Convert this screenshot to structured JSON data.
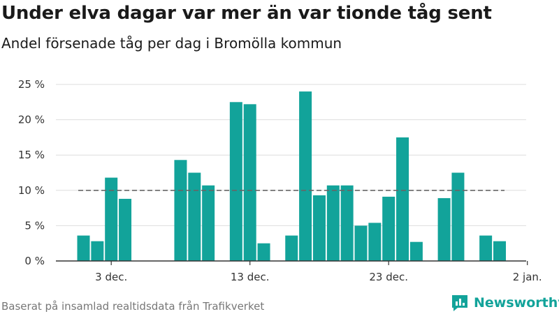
{
  "title": "Under elva dagar var mer än var tionde tåg sent",
  "subtitle": "Andel försenade tåg per dag i Bromölla kommun",
  "source": "Baserat på insamlad realtidsdata från Trafikverket",
  "brand": {
    "name": "Newsworthy",
    "icon": "bar-chart-logo-icon",
    "color": "#12a39a"
  },
  "chart_data": {
    "type": "bar",
    "title": "Under elva dagar var mer än var tionde tåg sent",
    "subtitle": "Andel försenade tåg per dag i Bromölla kommun",
    "x": [
      "2019-12-01",
      "2019-12-02",
      "2019-12-03",
      "2019-12-04",
      "2019-12-05",
      "2019-12-06",
      "2019-12-07",
      "2019-12-08",
      "2019-12-09",
      "2019-12-10",
      "2019-12-11",
      "2019-12-12",
      "2019-12-13",
      "2019-12-14",
      "2019-12-15",
      "2019-12-16",
      "2019-12-17",
      "2019-12-18",
      "2019-12-19",
      "2019-12-20",
      "2019-12-21",
      "2019-12-22",
      "2019-12-23",
      "2019-12-24",
      "2019-12-25",
      "2019-12-26",
      "2019-12-27",
      "2019-12-28",
      "2019-12-29",
      "2019-12-30",
      "2019-12-31"
    ],
    "values": [
      3.6,
      2.8,
      11.8,
      8.8,
      null,
      null,
      null,
      14.3,
      12.5,
      10.7,
      null,
      22.5,
      22.2,
      2.5,
      null,
      3.6,
      24.0,
      9.3,
      10.7,
      10.7,
      5.0,
      5.4,
      9.1,
      17.5,
      2.7,
      null,
      8.9,
      12.5,
      null,
      3.6,
      2.8
    ],
    "xticks": [
      {
        "date": "2019-12-03",
        "label": "3 dec."
      },
      {
        "date": "2019-12-13",
        "label": "13 dec."
      },
      {
        "date": "2019-12-23",
        "label": "23 dec."
      },
      {
        "date": "2020-01-02",
        "label": "2 jan."
      }
    ],
    "yticks": [
      {
        "value": 0,
        "label": "0 %"
      },
      {
        "value": 5,
        "label": "5 %"
      },
      {
        "value": 10,
        "label": "10 %"
      },
      {
        "value": 15,
        "label": "15 %"
      },
      {
        "value": 20,
        "label": "20 %"
      },
      {
        "value": 25,
        "label": "25 %"
      }
    ],
    "ylim": [
      0,
      25
    ],
    "reference_line": {
      "value": 10,
      "style": "dashed"
    },
    "bar_color": "#12a39a",
    "grid": true,
    "legend": false
  }
}
